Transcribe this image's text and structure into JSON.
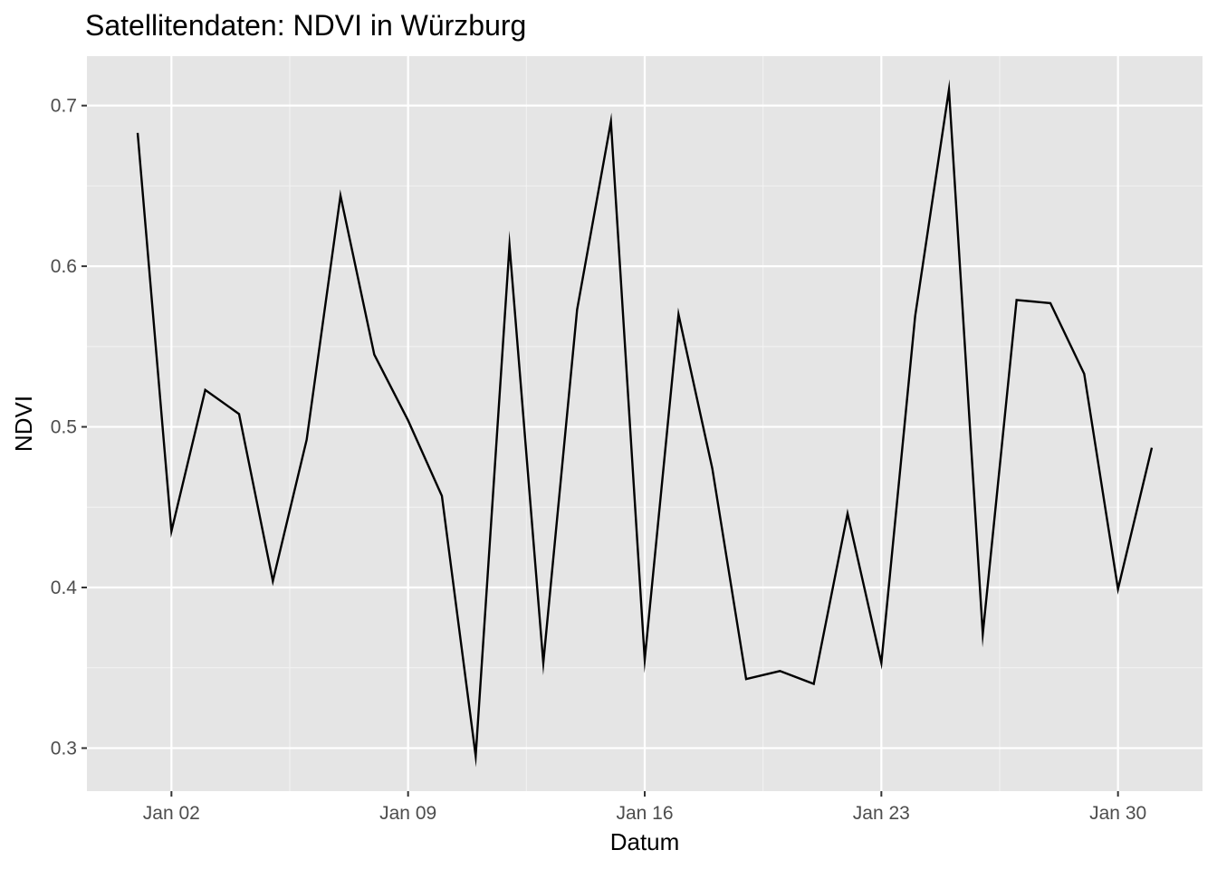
{
  "colors": {
    "panel_background": "#e5e5e5",
    "grid_major": "#ffffff",
    "grid_minor": "#f2f2f2",
    "line": "#000000",
    "tick_label": "#4d4d4d",
    "text": "#000000"
  },
  "chart_data": {
    "type": "line",
    "title": "Satellitendaten: NDVI in Würzburg",
    "xlabel": "Datum",
    "ylabel": "NDVI",
    "x_tick_labels": [
      "Jan 02",
      "Jan 09",
      "Jan 16",
      "Jan 23",
      "Jan 30"
    ],
    "x_tick_dates": [
      "2024-01-02",
      "2024-01-09",
      "2024-01-16",
      "2024-01-23",
      "2024-01-30"
    ],
    "y_ticks": [
      0.3,
      0.4,
      0.5,
      0.6,
      0.7
    ],
    "y_tick_labels": [
      "0.3",
      "0.4",
      "0.5",
      "0.6",
      "0.7"
    ],
    "xlim": [
      "2023-12-31",
      "2024-02-01"
    ],
    "ylim": [
      0.294,
      0.71
    ],
    "grid": true,
    "legend": "none",
    "series": [
      {
        "x": [
          "2024-01-01",
          "2024-01-02",
          "2024-01-03",
          "2024-01-04",
          "2024-01-05",
          "2024-01-06",
          "2024-01-07",
          "2024-01-08",
          "2024-01-09",
          "2024-01-10",
          "2024-01-11",
          "2024-01-12",
          "2024-01-13",
          "2024-01-14",
          "2024-01-15",
          "2024-01-16",
          "2024-01-17",
          "2024-01-18",
          "2024-01-19",
          "2024-01-20",
          "2024-01-21",
          "2024-01-22",
          "2024-01-23",
          "2024-01-24",
          "2024-01-25",
          "2024-01-26",
          "2024-01-27",
          "2024-01-28",
          "2024-01-29",
          "2024-01-30",
          "2024-01-31"
        ],
        "values": [
          0.683,
          0.435,
          0.523,
          0.508,
          0.404,
          0.492,
          0.644,
          0.545,
          0.504,
          0.457,
          0.295,
          0.613,
          0.353,
          0.573,
          0.69,
          0.355,
          0.57,
          0.474,
          0.343,
          0.348,
          0.34,
          0.446,
          0.353,
          0.569,
          0.71,
          0.371,
          0.579,
          0.577,
          0.533,
          0.399,
          0.487
        ]
      }
    ]
  }
}
